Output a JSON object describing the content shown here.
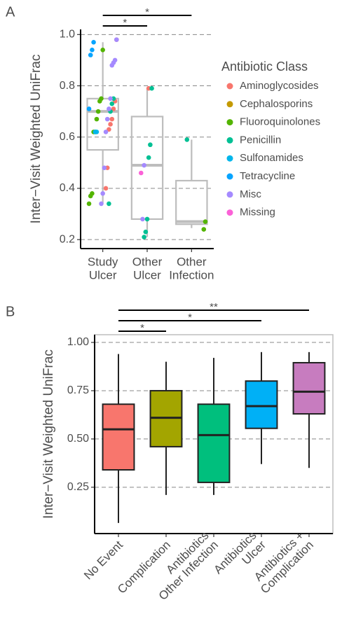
{
  "chart_data": [
    {
      "type": "box",
      "panel": "A",
      "y_label": "Inter−Visit Weighted UniFrac",
      "legend_title": "Antibiotic Class",
      "categories": [
        [
          "Study",
          "Ulcer"
        ],
        [
          "Other",
          "Ulcer"
        ],
        [
          "Other",
          "Infection"
        ]
      ],
      "ylim": [
        0.165,
        1.02
      ],
      "yticks": [
        0.2,
        0.4,
        0.6,
        0.8,
        {
          "value": 1,
          "label": "1.0"
        }
      ],
      "grid": true,
      "box_color": "#bdbdbd",
      "boxes": [
        {
          "whisker_low": 0.34,
          "q1": 0.55,
          "median": 0.7,
          "q3": 0.75,
          "whisker_high": 0.97
        },
        {
          "whisker_low": 0.21,
          "q1": 0.28,
          "median": 0.49,
          "q3": 0.68,
          "whisker_high": 0.79
        },
        {
          "whisker_low": 0.245,
          "q1": 0.26,
          "median": 0.27,
          "q3": 0.43,
          "whisker_high": 0.59
        }
      ],
      "series": [
        {
          "name": "Aminoglycosides",
          "color": "#f8766d",
          "values": [
            [
              0.98,
              0.74,
              0.71,
              0.67,
              0.65,
              0.63,
              0.48,
              0.4
            ],
            [
              0.79
            ],
            []
          ]
        },
        {
          "name": "Cephalosporins",
          "color": "#c49a00",
          "values": [
            [],
            [],
            []
          ]
        },
        {
          "name": "Fluoroquinolones",
          "color": "#53b400",
          "values": [
            [
              0.94,
              0.75,
              0.74,
              0.7,
              0.67,
              0.62,
              0.62,
              0.38,
              0.37,
              0.34
            ],
            [],
            [
              0.27,
              0.24
            ]
          ]
        },
        {
          "name": "Penicillin",
          "color": "#00c094",
          "values": [
            [
              0.75,
              0.73,
              0.7,
              0.34
            ],
            [
              0.79,
              0.57,
              0.52,
              0.28,
              0.23,
              0.21
            ],
            [
              0.59
            ]
          ]
        },
        {
          "name": "Sulfonamides",
          "color": "#00b6eb",
          "values": [
            [
              0.62,
              0.62
            ],
            [],
            []
          ]
        },
        {
          "name": "Tetracycline",
          "color": "#06a4ff",
          "values": [
            [
              0.97,
              0.94,
              0.92,
              0.71
            ],
            [],
            []
          ]
        },
        {
          "name": "Misc",
          "color": "#a58aff",
          "values": [
            [
              0.98,
              0.9,
              0.89,
              0.88,
              0.75,
              0.71,
              0.67,
              0.62,
              0.48,
              0.38,
              0.34
            ],
            [
              0.49,
              0.28
            ],
            []
          ]
        },
        {
          "name": "Missing",
          "color": "#fb61d7",
          "values": [
            [],
            [
              0.46
            ],
            []
          ]
        }
      ],
      "significance": [
        {
          "pair": [
            0,
            1
          ],
          "label": "*"
        },
        {
          "pair": [
            0,
            2
          ],
          "label": "*"
        }
      ]
    },
    {
      "type": "box",
      "panel": "B",
      "y_label": "Inter−Visit Weighted UniFrac",
      "categories": [
        [
          "No Event"
        ],
        [
          "Complication"
        ],
        [
          "Antibiotics",
          "Other Infection"
        ],
        [
          "Antibiotics",
          "Ulcer"
        ],
        [
          "Antibiotics +",
          "Complication"
        ]
      ],
      "ylim": [
        0.01,
        1.04
      ],
      "yticks": [
        0.25,
        {
          "value": 0.5,
          "label": "0.50"
        },
        0.75,
        {
          "value": 1,
          "label": "1.00"
        }
      ],
      "grid": true,
      "boxes": [
        {
          "whisker_low": 0.065,
          "q1": 0.34,
          "median": 0.55,
          "q3": 0.68,
          "whisker_high": 0.94,
          "color": "#f8766d"
        },
        {
          "whisker_low": 0.21,
          "q1": 0.46,
          "median": 0.61,
          "q3": 0.75,
          "whisker_high": 0.9,
          "color": "#a3a500"
        },
        {
          "whisker_low": 0.21,
          "q1": 0.275,
          "median": 0.52,
          "q3": 0.68,
          "whisker_high": 0.92,
          "color": "#00bf7d"
        },
        {
          "whisker_low": 0.37,
          "q1": 0.555,
          "median": 0.67,
          "q3": 0.8,
          "whisker_high": 0.95,
          "color": "#00b0f6"
        },
        {
          "whisker_low": 0.35,
          "q1": 0.63,
          "median": 0.745,
          "q3": 0.895,
          "whisker_high": 0.95,
          "color": "#c77cbf"
        }
      ],
      "significance": [
        {
          "pair": [
            0,
            1
          ],
          "label": "*"
        },
        {
          "pair": [
            0,
            3
          ],
          "label": "*"
        },
        {
          "pair": [
            0,
            4
          ],
          "label": "**"
        }
      ]
    }
  ]
}
